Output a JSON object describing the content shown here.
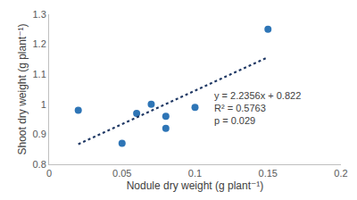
{
  "chart_data": {
    "type": "scatter",
    "x_label": "Nodule dry weight (g plant⁻¹)",
    "y_label": "Shoot dry weight (g plant⁻¹)",
    "xlim": [
      0,
      0.2
    ],
    "xticks": [
      0,
      0.05,
      0.1,
      0.15,
      0.2
    ],
    "ylim": [
      0.8,
      1.3
    ],
    "yticks": [
      0.8,
      0.9,
      1,
      1.1,
      1.2,
      1.3
    ],
    "grid": false,
    "series": [
      {
        "type": "scatter",
        "marker": "circle",
        "color": "#2e75b6",
        "x": [
          0.02,
          0.05,
          0.06,
          0.07,
          0.08,
          0.08,
          0.1,
          0.15
        ],
        "values": [
          0.98,
          0.87,
          0.97,
          1.0,
          0.96,
          0.92,
          0.99,
          1.25
        ]
      },
      {
        "type": "line",
        "line_style": "dot",
        "color": "#1f3864",
        "x": [
          0.02,
          0.15
        ],
        "values": [
          0.867,
          1.157
        ]
      }
    ],
    "annotations": [
      "y = 2.2356x + 0.822",
      "R² = 0.5763",
      "p = 0.029"
    ]
  }
}
